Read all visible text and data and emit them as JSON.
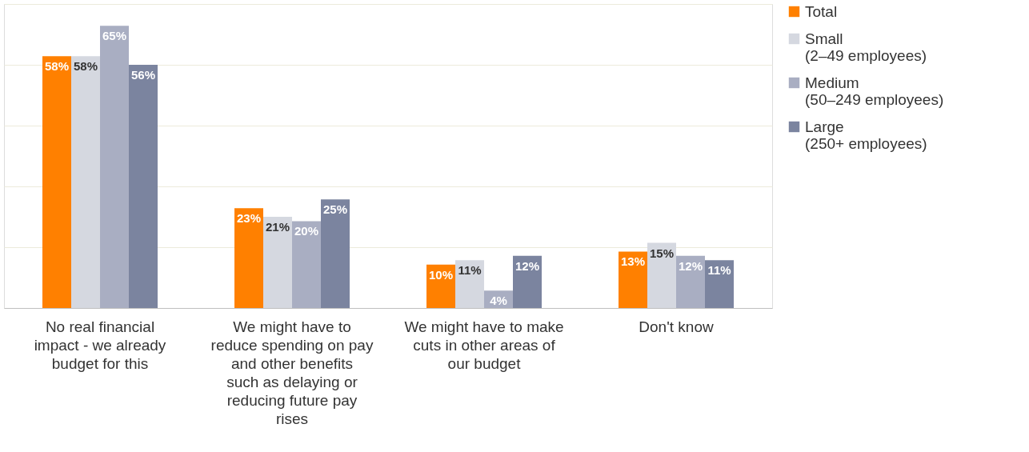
{
  "chart_data": {
    "type": "bar",
    "categories": [
      "No real financial impact - we already budget for this",
      "We might have to reduce spending on pay and other benefits such as delaying or reducing future pay rises",
      "We might have to make cuts in other areas of our budget",
      "Don't know"
    ],
    "series": [
      {
        "name": "Total",
        "color": "#ff8000",
        "values": [
          58,
          23,
          10,
          13
        ],
        "value_labels": [
          "58%",
          "23%",
          "10%",
          "13%"
        ]
      },
      {
        "name": "Small\n(2–49 employees)",
        "color": "#d5d8e0",
        "values": [
          58,
          21,
          11,
          15
        ],
        "value_labels": [
          "58%",
          "21%",
          "11%",
          "15%"
        ]
      },
      {
        "name": "Medium\n(50–249 employees)",
        "color": "#a9aec2",
        "values": [
          65,
          20,
          4,
          12
        ],
        "value_labels": [
          "65%",
          "20%",
          "4%",
          "12%"
        ]
      },
      {
        "name": "Large\n(250+ employees)",
        "color": "#7b849f",
        "values": [
          56,
          25,
          12,
          11
        ],
        "value_labels": [
          "56%",
          "25%",
          "12%",
          "11%"
        ]
      }
    ],
    "ylim": [
      0,
      70
    ],
    "yticks": [
      {
        "value": 0,
        "label": null
      },
      {
        "value": 14,
        "label": null
      },
      {
        "value": 28,
        "label": null
      },
      {
        "value": 42,
        "label": null
      },
      {
        "value": 56,
        "label": null
      },
      {
        "value": 70,
        "label": null
      }
    ],
    "grid": "y",
    "legend": "right",
    "tick_labels": "x"
  }
}
